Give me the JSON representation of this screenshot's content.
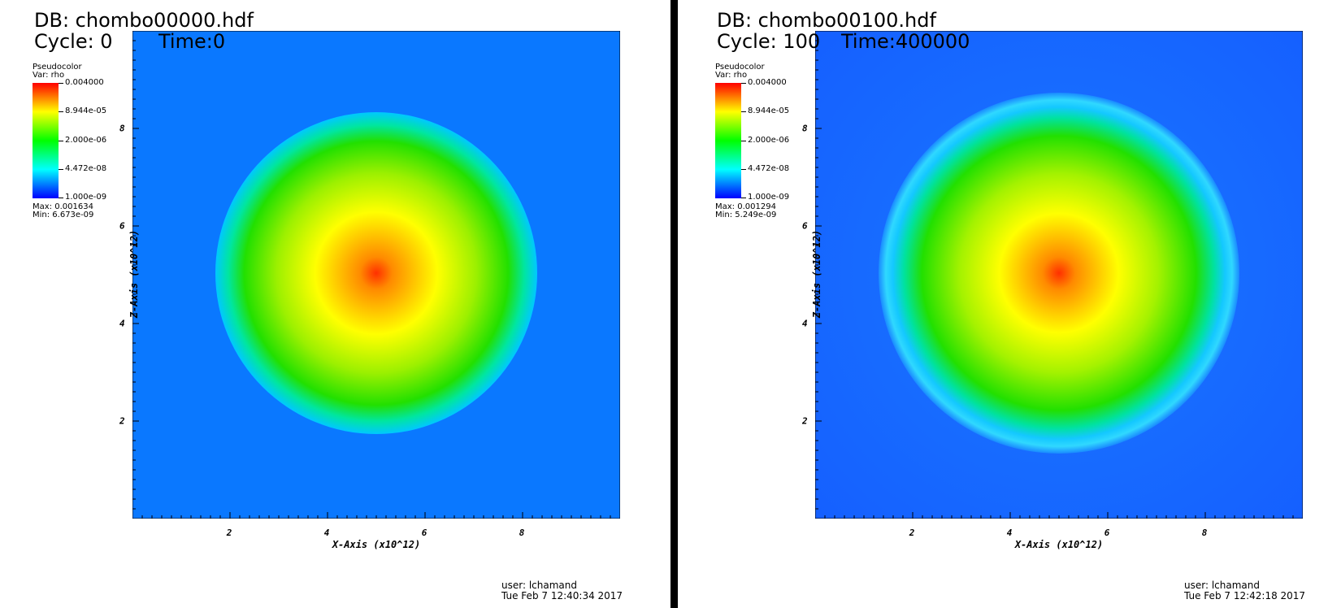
{
  "panels": [
    {
      "db_label": "DB: chombo00000.hdf",
      "cycle_label": "Cycle: 0",
      "time_label": "Time:0",
      "legend": {
        "title": "Pseudocolor",
        "var": "Var: rho",
        "ticks": [
          "0.004000",
          "8.944e-05",
          "2.000e-06",
          "4.472e-08",
          "1.000e-09"
        ],
        "max": "Max:  0.001634",
        "min": "Min:  6.673e-09"
      },
      "x_axis_title": "X-Axis (x10^12)",
      "y_axis_title": "Z-Axis (x10^12)",
      "x_ticks": [
        "2",
        "4",
        "6",
        "8"
      ],
      "y_ticks": [
        "2",
        "4",
        "6",
        "8"
      ],
      "user": "user: lchamand",
      "timestamp": "Tue Feb  7 12:40:34 2017",
      "colors": {
        "background": "#0a78ff",
        "shell": "#00d2ff",
        "core": "#ff3a00"
      }
    },
    {
      "db_label": "DB: chombo00100.hdf",
      "cycle_label": "Cycle: 100",
      "time_label": "Time:400000",
      "legend": {
        "title": "Pseudocolor",
        "var": "Var: rho",
        "ticks": [
          "0.004000",
          "8.944e-05",
          "2.000e-06",
          "4.472e-08",
          "1.000e-09"
        ],
        "max": "Max:  0.001294",
        "min": "Min:  5.249e-09"
      },
      "x_axis_title": "X-Axis (x10^12)",
      "y_axis_title": "Z-Axis (x10^12)",
      "x_ticks": [
        "2",
        "4",
        "6",
        "8"
      ],
      "y_ticks": [
        "2",
        "4",
        "6",
        "8"
      ],
      "user": "user: lchamand",
      "timestamp": "Tue Feb  7 12:42:18 2017",
      "colors": {
        "background": "#1a6fff",
        "shell": "#1ad8ff",
        "core": "#ff3a00"
      }
    }
  ]
}
